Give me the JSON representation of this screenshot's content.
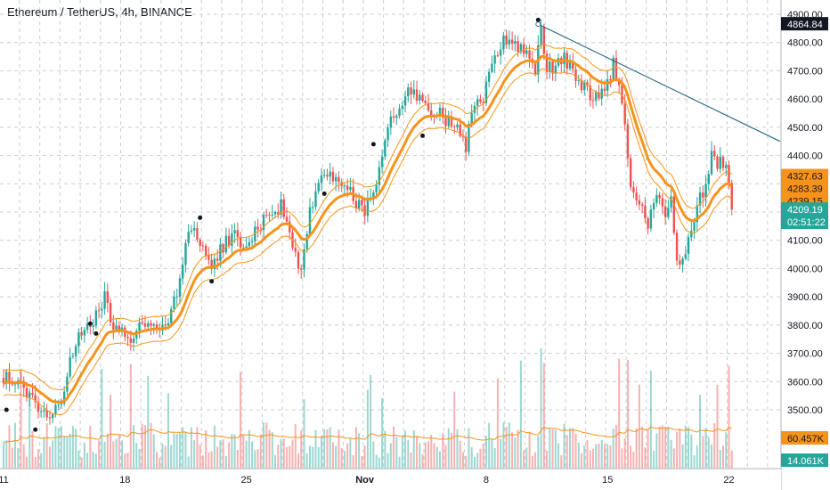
{
  "title": "Ethereum / TetherUS, 4h, BINANCE",
  "colors": {
    "up": "#26a69a",
    "down": "#ef5350",
    "ema": "#f7931a",
    "trendline": "#2e6b8a",
    "grid": "#c9ced6"
  },
  "chart_data": {
    "type": "candlestick",
    "symbol": "Ethereum / TetherUS",
    "interval": "4h",
    "exchange": "BINANCE",
    "y_ticks": [
      3500,
      3600,
      3700,
      3800,
      3900,
      4000,
      4100,
      4200,
      4300,
      4400,
      4500,
      4600,
      4700,
      4800,
      4900
    ],
    "y_tick_labels": [
      "3500.00",
      "3600.00",
      "3700.00",
      "3800.00",
      "3900.00",
      "4000.00",
      "4100.00",
      "4200.00",
      "4300.00",
      "4400.00",
      "4500.00",
      "4600.00",
      "4700.00",
      "4800.00",
      "4900.00"
    ],
    "ylim": [
      3370,
      4990
    ],
    "x_labels": [
      {
        "label": "11",
        "bar": 0
      },
      {
        "label": "18",
        "bar": 42
      },
      {
        "label": "25",
        "bar": 84
      },
      {
        "label": "Nov",
        "bar": 125
      },
      {
        "label": "8",
        "bar": 167
      },
      {
        "label": "15",
        "bar": 209
      },
      {
        "label": "22",
        "bar": 251
      }
    ],
    "candle_count": 253,
    "trendline": {
      "from_bar": 185,
      "from_price": 4864.84,
      "to_bar": 268,
      "to_price": 4450
    },
    "price_tags": [
      {
        "value": "4864.84",
        "price": 4864.84,
        "style": "dark"
      },
      {
        "value": "4327.63",
        "price": 4327.63,
        "style": "orange"
      },
      {
        "value": "4283.39",
        "price": 4283.39,
        "style": "orange"
      },
      {
        "value": "4239.15",
        "price": 4239.15,
        "style": "orange"
      },
      {
        "value": "4209.19",
        "price": 4209.19,
        "style": "green"
      },
      {
        "value": "02:51:22",
        "price": 4172,
        "style": "green"
      }
    ],
    "volume_tags": [
      {
        "value": "60.457K",
        "style": "orange"
      },
      {
        "value": "14.061K",
        "style": "green"
      }
    ],
    "path": [
      [
        0,
        3620
      ],
      [
        4,
        3600
      ],
      [
        8,
        3560
      ],
      [
        12,
        3520
      ],
      [
        16,
        3480
      ],
      [
        20,
        3540
      ],
      [
        24,
        3700
      ],
      [
        28,
        3800
      ],
      [
        32,
        3830
      ],
      [
        35,
        3900
      ],
      [
        37,
        3820
      ],
      [
        40,
        3790
      ],
      [
        44,
        3760
      ],
      [
        48,
        3800
      ],
      [
        52,
        3780
      ],
      [
        56,
        3800
      ],
      [
        60,
        3900
      ],
      [
        64,
        4150
      ],
      [
        68,
        4100
      ],
      [
        72,
        4000
      ],
      [
        76,
        4080
      ],
      [
        80,
        4120
      ],
      [
        84,
        4060
      ],
      [
        88,
        4150
      ],
      [
        92,
        4200
      ],
      [
        96,
        4220
      ],
      [
        98,
        4190
      ],
      [
        100,
        4080
      ],
      [
        103,
        4000
      ],
      [
        106,
        4200
      ],
      [
        110,
        4340
      ],
      [
        113,
        4320
      ],
      [
        116,
        4300
      ],
      [
        120,
        4280
      ],
      [
        124,
        4200
      ],
      [
        128,
        4250
      ],
      [
        131,
        4380
      ],
      [
        134,
        4520
      ],
      [
        138,
        4600
      ],
      [
        142,
        4630
      ],
      [
        146,
        4580
      ],
      [
        150,
        4550
      ],
      [
        154,
        4520
      ],
      [
        158,
        4490
      ],
      [
        160,
        4420
      ],
      [
        162,
        4550
      ],
      [
        166,
        4600
      ],
      [
        170,
        4760
      ],
      [
        174,
        4820
      ],
      [
        178,
        4790
      ],
      [
        181,
        4760
      ],
      [
        184,
        4700
      ],
      [
        186,
        4850
      ],
      [
        188,
        4700
      ],
      [
        191,
        4720
      ],
      [
        194,
        4760
      ],
      [
        197,
        4680
      ],
      [
        200,
        4650
      ],
      [
        203,
        4620
      ],
      [
        206,
        4600
      ],
      [
        208,
        4640
      ],
      [
        211,
        4720
      ],
      [
        214,
        4600
      ],
      [
        217,
        4280
      ],
      [
        220,
        4220
      ],
      [
        223,
        4160
      ],
      [
        226,
        4250
      ],
      [
        229,
        4180
      ],
      [
        231,
        4230
      ],
      [
        233,
        4050
      ],
      [
        235,
        4020
      ],
      [
        237,
        4120
      ],
      [
        240,
        4220
      ],
      [
        243,
        4300
      ],
      [
        245,
        4400
      ],
      [
        247,
        4360
      ],
      [
        249,
        4380
      ],
      [
        251,
        4320
      ],
      [
        252,
        4209.19
      ]
    ],
    "markers": [
      {
        "bar": 1,
        "price": 3500
      },
      {
        "bar": 11,
        "price": 3430
      },
      {
        "bar": 30,
        "price": 3805
      },
      {
        "bar": 32,
        "price": 3770
      },
      {
        "bar": 68,
        "price": 4180
      },
      {
        "bar": 72,
        "price": 3955
      },
      {
        "bar": 111,
        "price": 4265
      },
      {
        "bar": 128,
        "price": 4440
      },
      {
        "bar": 145,
        "price": 4470
      },
      {
        "bar": 185,
        "price": 4880
      }
    ]
  }
}
